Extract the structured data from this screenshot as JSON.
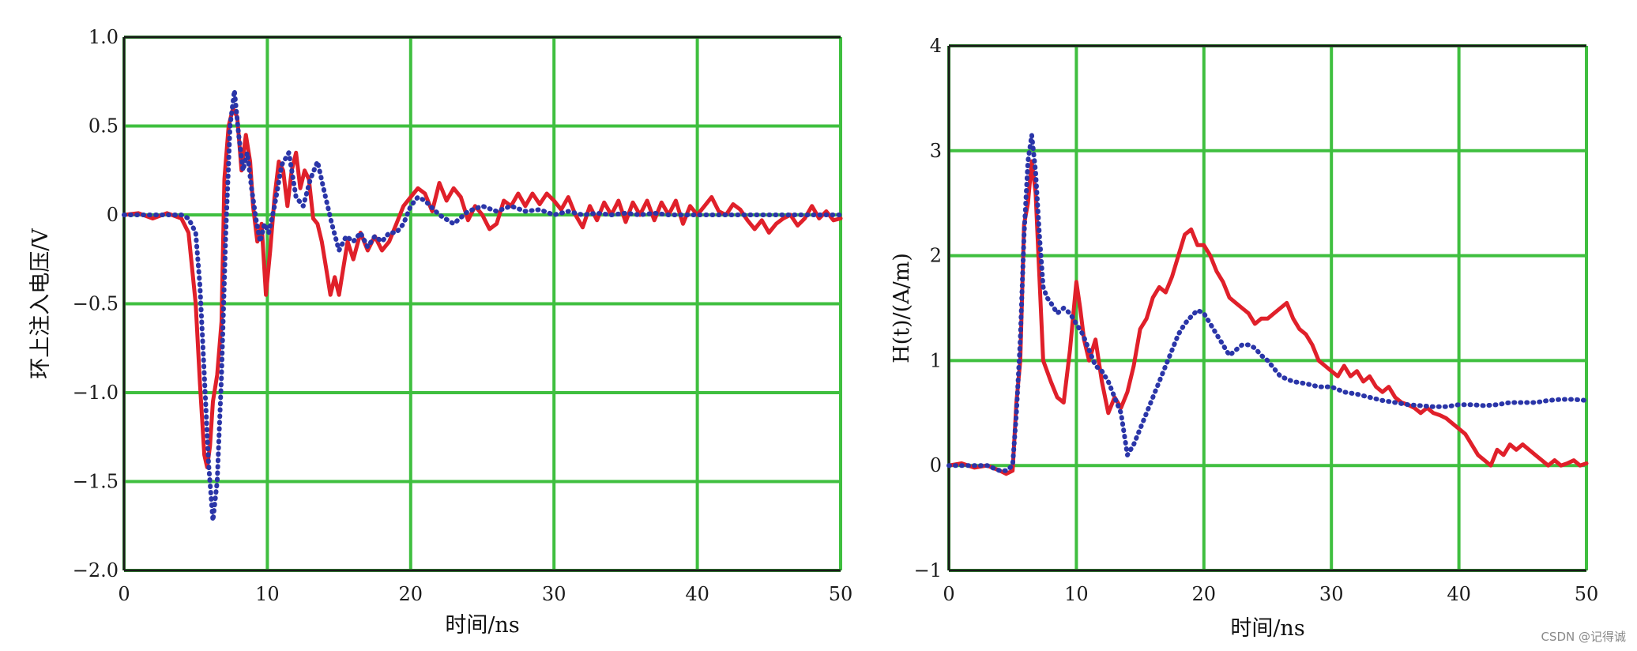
{
  "watermark": "CSDN @记得诚",
  "colors": {
    "grid": "#3fbf3f",
    "frame": "#1a1a1a",
    "measured": "#e0202a",
    "simulated": "#2a35a8",
    "plot_bg": "#ffffff"
  },
  "chart_data": [
    {
      "type": "line",
      "title": "",
      "xlabel": "时间/ns",
      "ylabel": "环上注入电压/V",
      "xlim": [
        0,
        50
      ],
      "ylim": [
        -2.0,
        1.0
      ],
      "xticks": [
        "0",
        "10",
        "20",
        "30",
        "40",
        "50"
      ],
      "yticks": [
        "1.0",
        "0.5",
        "0",
        "-0.5",
        "-1.0",
        "-1.5",
        "-2.0"
      ],
      "grid": true,
      "series": [
        {
          "style": "solid",
          "color": "#e0202a",
          "x": [
            0,
            1,
            2,
            3,
            4,
            4.5,
            5,
            5.3,
            5.6,
            5.8,
            6.0,
            6.2,
            6.5,
            6.8,
            7.0,
            7.3,
            7.6,
            7.9,
            8.2,
            8.5,
            8.8,
            9.0,
            9.3,
            9.6,
            9.9,
            10.2,
            10.5,
            10.8,
            11.1,
            11.4,
            11.7,
            12.0,
            12.3,
            12.6,
            12.9,
            13.2,
            13.5,
            13.8,
            14.1,
            14.4,
            14.7,
            15.0,
            15.3,
            15.6,
            16.0,
            16.5,
            17.0,
            17.5,
            18.0,
            18.5,
            19.0,
            19.5,
            20.0,
            20.5,
            21.0,
            21.5,
            22.0,
            22.5,
            23.0,
            23.5,
            24.0,
            24.5,
            25.0,
            25.5,
            26.0,
            26.5,
            27.0,
            27.5,
            28.0,
            28.5,
            29.0,
            29.5,
            30.0,
            30.5,
            31.0,
            31.5,
            32.0,
            32.5,
            33.0,
            33.5,
            34.0,
            34.5,
            35.0,
            35.5,
            36.0,
            36.5,
            37.0,
            37.5,
            38.0,
            38.5,
            39.0,
            39.5,
            40.0,
            40.5,
            41.0,
            41.5,
            42.0,
            42.5,
            43.0,
            43.5,
            44.0,
            44.5,
            45.0,
            45.5,
            46.0,
            46.5,
            47.0,
            47.5,
            48.0,
            48.5,
            49.0,
            49.5,
            50.0
          ],
          "y": [
            0.0,
            0.01,
            -0.02,
            0.01,
            -0.02,
            -0.1,
            -0.5,
            -0.95,
            -1.35,
            -1.42,
            -1.3,
            -1.05,
            -0.9,
            -0.6,
            0.2,
            0.5,
            0.6,
            0.55,
            0.25,
            0.45,
            0.3,
            0.05,
            -0.15,
            -0.05,
            -0.45,
            -0.2,
            0.1,
            0.3,
            0.25,
            0.05,
            0.25,
            0.35,
            0.15,
            0.25,
            0.2,
            -0.02,
            -0.05,
            -0.15,
            -0.3,
            -0.45,
            -0.35,
            -0.45,
            -0.3,
            -0.15,
            -0.25,
            -0.1,
            -0.2,
            -0.12,
            -0.2,
            -0.15,
            -0.05,
            0.05,
            0.1,
            0.15,
            0.12,
            0.02,
            0.18,
            0.08,
            0.15,
            0.1,
            -0.03,
            0.05,
            0.0,
            -0.08,
            -0.05,
            0.08,
            0.05,
            0.12,
            0.05,
            0.12,
            0.06,
            0.12,
            0.08,
            0.03,
            0.1,
            0.0,
            -0.07,
            0.05,
            -0.03,
            0.07,
            0.0,
            0.08,
            -0.04,
            0.07,
            0.0,
            0.08,
            -0.03,
            0.07,
            0.0,
            0.08,
            -0.05,
            0.05,
            0.0,
            0.05,
            0.1,
            0.02,
            0.0,
            0.06,
            0.03,
            -0.03,
            -0.08,
            -0.03,
            -0.1,
            -0.05,
            -0.02,
            0.0,
            -0.06,
            -0.02,
            0.05,
            -0.02,
            0.02,
            -0.03,
            -0.02
          ]
        },
        {
          "style": "dotted",
          "color": "#2a35a8",
          "x": [
            0,
            1,
            2,
            3,
            4,
            4.5,
            5,
            5.3,
            5.6,
            5.9,
            6.2,
            6.5,
            6.8,
            7.1,
            7.4,
            7.7,
            8.0,
            8.3,
            8.6,
            8.9,
            9.2,
            9.5,
            9.8,
            10.1,
            10.5,
            11.0,
            11.5,
            12.0,
            12.5,
            13.0,
            13.5,
            14.0,
            14.5,
            15.0,
            15.5,
            16.0,
            16.5,
            17.0,
            17.5,
            18.0,
            18.5,
            19.0,
            19.5,
            20.0,
            20.5,
            21.0,
            22.0,
            23.0,
            24.0,
            25.0,
            26.0,
            27.0,
            28.0,
            29.0,
            30.0,
            31.0,
            32.0,
            33.0,
            34.0,
            35.0,
            36.0,
            37.0,
            38.0,
            39.0,
            40.0,
            41.0,
            42.0,
            43.0,
            44.0,
            45.0,
            46.0,
            47.0,
            48.0,
            49.0,
            50.0
          ],
          "y": [
            0.0,
            0.0,
            0.0,
            0.0,
            0.0,
            -0.02,
            -0.1,
            -0.4,
            -0.9,
            -1.4,
            -1.72,
            -1.5,
            -0.9,
            -0.1,
            0.5,
            0.7,
            0.45,
            0.25,
            0.35,
            0.15,
            -0.02,
            -0.15,
            -0.05,
            -0.1,
            0.05,
            0.28,
            0.35,
            0.1,
            0.05,
            0.2,
            0.3,
            0.12,
            -0.05,
            -0.2,
            -0.12,
            -0.15,
            -0.1,
            -0.18,
            -0.12,
            -0.15,
            -0.1,
            -0.1,
            -0.05,
            0.05,
            0.1,
            0.08,
            0.0,
            -0.05,
            0.02,
            0.05,
            0.02,
            0.05,
            0.02,
            0.03,
            0.0,
            0.02,
            0.0,
            0.01,
            0.0,
            0.01,
            0.0,
            0.01,
            0.0,
            0.0,
            0.0,
            0.0,
            0.0,
            0.0,
            0.0,
            0.0,
            0.0,
            0.0,
            0.0,
            0.0,
            0.0
          ]
        }
      ]
    },
    {
      "type": "line",
      "title": "",
      "xlabel": "时间/ns",
      "ylabel": "H(t)/(A/m)",
      "xlim": [
        0,
        50
      ],
      "ylim": [
        -1,
        4
      ],
      "xticks": [
        "0",
        "10",
        "20",
        "30",
        "40",
        "50"
      ],
      "yticks": [
        "4",
        "3",
        "2",
        "1",
        "0",
        "-1"
      ],
      "grid": true,
      "series": [
        {
          "style": "solid",
          "color": "#e0202a",
          "x": [
            0,
            1,
            2,
            3,
            4,
            4.5,
            5.0,
            5.3,
            5.6,
            5.9,
            6.2,
            6.5,
            6.8,
            7.1,
            7.4,
            7.7,
            8.0,
            8.5,
            9.0,
            9.5,
            10.0,
            10.3,
            10.6,
            11.0,
            11.5,
            12.0,
            12.5,
            13.0,
            13.5,
            14.0,
            14.5,
            15.0,
            15.5,
            16.0,
            16.5,
            17.0,
            17.5,
            18.0,
            18.5,
            19.0,
            19.5,
            20.0,
            20.5,
            21.0,
            21.5,
            22.0,
            22.5,
            23.0,
            23.5,
            24.0,
            24.5,
            25.0,
            25.5,
            26.0,
            26.5,
            27.0,
            27.5,
            28.0,
            28.5,
            29.0,
            29.5,
            30.0,
            30.5,
            31.0,
            31.5,
            32.0,
            32.5,
            33.0,
            33.5,
            34.0,
            34.5,
            35.0,
            35.5,
            36.0,
            36.5,
            37.0,
            37.5,
            38.0,
            38.5,
            39.0,
            39.5,
            40.0,
            40.5,
            41.0,
            41.5,
            42.0,
            42.5,
            43.0,
            43.5,
            44.0,
            44.5,
            45.0,
            45.5,
            46.0,
            46.5,
            47.0,
            47.5,
            48.0,
            48.5,
            49.0,
            49.5,
            50.0
          ],
          "y": [
            0.0,
            0.02,
            -0.02,
            0.0,
            -0.05,
            -0.08,
            -0.05,
            0.6,
            1.0,
            2.3,
            2.5,
            2.9,
            2.6,
            1.8,
            1.0,
            0.9,
            0.8,
            0.65,
            0.6,
            1.1,
            1.75,
            1.5,
            1.2,
            1.0,
            1.2,
            0.8,
            0.5,
            0.65,
            0.55,
            0.7,
            0.95,
            1.3,
            1.4,
            1.6,
            1.7,
            1.65,
            1.8,
            2.0,
            2.2,
            2.25,
            2.1,
            2.1,
            2.0,
            1.85,
            1.75,
            1.6,
            1.55,
            1.5,
            1.45,
            1.35,
            1.4,
            1.4,
            1.45,
            1.5,
            1.55,
            1.4,
            1.3,
            1.25,
            1.15,
            1.0,
            0.95,
            0.9,
            0.85,
            0.95,
            0.85,
            0.9,
            0.8,
            0.85,
            0.75,
            0.7,
            0.75,
            0.65,
            0.6,
            0.58,
            0.55,
            0.5,
            0.55,
            0.5,
            0.48,
            0.45,
            0.4,
            0.35,
            0.3,
            0.2,
            0.1,
            0.05,
            0.0,
            0.15,
            0.1,
            0.2,
            0.15,
            0.2,
            0.15,
            0.1,
            0.05,
            0.0,
            0.05,
            0.0,
            0.02,
            0.05,
            0.0,
            0.02
          ]
        },
        {
          "style": "dotted",
          "color": "#2a35a8",
          "x": [
            0,
            1,
            2,
            3,
            4,
            4.5,
            5.0,
            5.3,
            5.6,
            5.9,
            6.2,
            6.5,
            6.8,
            7.1,
            7.4,
            7.7,
            8.0,
            8.5,
            9.0,
            9.5,
            10.0,
            10.5,
            11.0,
            11.5,
            12.0,
            12.5,
            13.0,
            13.5,
            14.0,
            14.5,
            15.0,
            15.5,
            16.0,
            16.5,
            17.0,
            17.5,
            18.0,
            18.5,
            19.0,
            19.5,
            20.0,
            20.5,
            21.0,
            21.5,
            22.0,
            22.5,
            23.0,
            23.5,
            24.0,
            24.5,
            25.0,
            26.0,
            27.0,
            28.0,
            29.0,
            30.0,
            31.0,
            32.0,
            33.0,
            34.0,
            35.0,
            36.0,
            37.0,
            38.0,
            39.0,
            40.0,
            41.0,
            42.0,
            43.0,
            44.0,
            45.0,
            46.0,
            47.0,
            48.0,
            49.0,
            50.0
          ],
          "y": [
            0.0,
            0.0,
            0.0,
            0.0,
            -0.05,
            -0.05,
            0.0,
            0.5,
            1.2,
            2.2,
            2.9,
            3.15,
            2.8,
            2.2,
            1.7,
            1.6,
            1.55,
            1.45,
            1.5,
            1.45,
            1.35,
            1.25,
            1.1,
            0.95,
            0.9,
            0.8,
            0.65,
            0.5,
            0.1,
            0.2,
            0.35,
            0.5,
            0.65,
            0.8,
            0.95,
            1.1,
            1.25,
            1.35,
            1.42,
            1.48,
            1.45,
            1.35,
            1.25,
            1.15,
            1.05,
            1.1,
            1.15,
            1.15,
            1.12,
            1.05,
            1.0,
            0.85,
            0.8,
            0.78,
            0.75,
            0.75,
            0.7,
            0.68,
            0.65,
            0.62,
            0.6,
            0.58,
            0.57,
            0.56,
            0.56,
            0.58,
            0.58,
            0.57,
            0.58,
            0.6,
            0.6,
            0.6,
            0.62,
            0.63,
            0.63,
            0.62
          ]
        }
      ]
    }
  ]
}
